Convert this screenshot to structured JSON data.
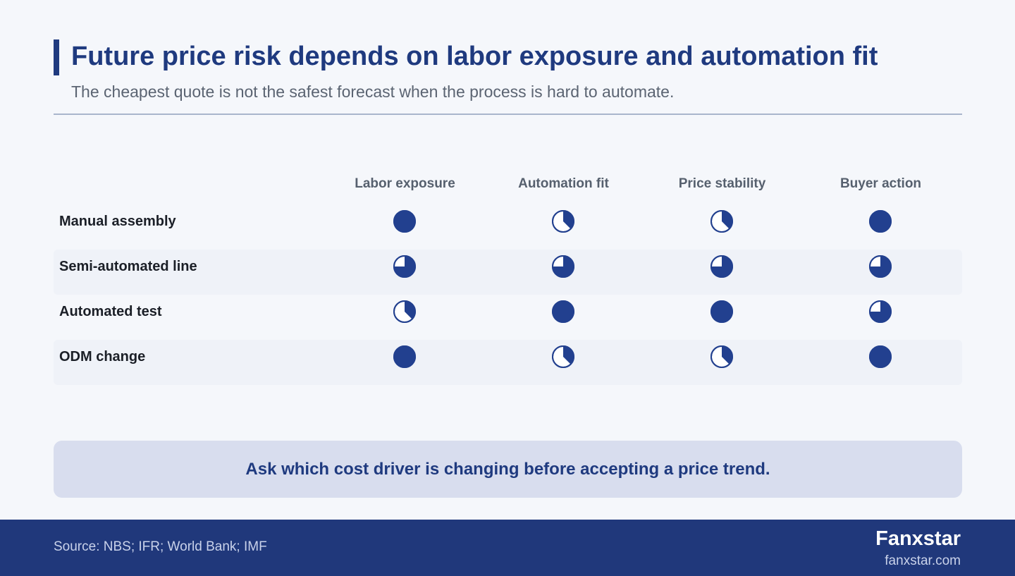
{
  "header": {
    "title": "Future price risk depends on labor exposure and automation fit",
    "subtitle": "The cheapest quote is not the safest forecast when the process is hard to automate."
  },
  "chart_data": {
    "type": "table",
    "encoding": "harvey-balls",
    "columns": [
      "Labor exposure",
      "Automation fit",
      "Price stability",
      "Buyer action"
    ],
    "rows": [
      {
        "label": "Manual assembly",
        "values": [
          1,
          0.375,
          0.375,
          1
        ]
      },
      {
        "label": "Semi-automated line",
        "values": [
          0.75,
          0.75,
          0.75,
          0.75
        ]
      },
      {
        "label": "Automated test",
        "values": [
          0.375,
          1,
          1,
          0.75
        ]
      },
      {
        "label": "ODM change",
        "values": [
          1,
          0.375,
          0.375,
          1
        ]
      }
    ]
  },
  "callout": {
    "text": "Ask which cost driver is changing before accepting a price trend."
  },
  "footer": {
    "source": "Source: NBS; IFR; World Bank; IMF",
    "brand": "Fanxstar",
    "url": "fanxstar.com"
  },
  "colors": {
    "accent": "#1f3a7f",
    "ball_fill": "#22408f",
    "footer_bg": "#20387b",
    "callout_bg": "#d8ddee"
  }
}
